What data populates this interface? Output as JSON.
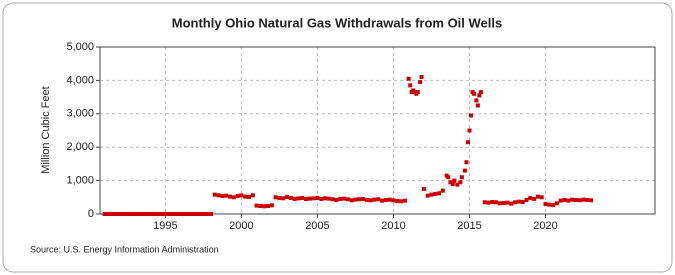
{
  "chart_data": {
    "type": "scatter",
    "title": "Monthly Ohio Natural Gas Withdrawals from Oil Wells",
    "y_label": "Million Cubic Feet",
    "source": "Source: U.S. Energy Information Administration",
    "color": "#cc0000",
    "grid": true,
    "xlim": [
      1990.7,
      2027.2
    ],
    "xticks": [
      1995,
      2000,
      2005,
      2010,
      2015,
      2020
    ],
    "ylim": [
      0,
      5000
    ],
    "yticks": [
      0,
      {
        "value": 1000,
        "label": "1,000"
      },
      {
        "value": 2000,
        "label": "2,000"
      },
      {
        "value": 3000,
        "label": "3,000"
      },
      {
        "value": 4000,
        "label": "4,000"
      },
      {
        "value": 5000,
        "label": "5,000"
      }
    ],
    "x": [
      1991,
      1991.25,
      1991.5,
      1991.75,
      1992,
      1992.25,
      1992.5,
      1992.75,
      1993,
      1993.25,
      1993.5,
      1993.75,
      1994,
      1994.25,
      1994.5,
      1994.75,
      1995,
      1995.25,
      1995.5,
      1995.75,
      1996,
      1996.25,
      1996.5,
      1996.75,
      1997,
      1997.25,
      1997.5,
      1997.75,
      1998,
      1998.25,
      1998.5,
      1998.75,
      1999,
      1999.25,
      1999.5,
      1999.75,
      2000,
      2000.25,
      2000.5,
      2000.75,
      2001,
      2001.25,
      2001.5,
      2001.75,
      2002,
      2002.25,
      2002.5,
      2002.75,
      2003,
      2003.25,
      2003.5,
      2003.75,
      2004,
      2004.25,
      2004.5,
      2004.75,
      2005,
      2005.25,
      2005.5,
      2005.75,
      2006,
      2006.25,
      2006.5,
      2006.75,
      2007,
      2007.25,
      2007.5,
      2007.75,
      2008,
      2008.25,
      2008.5,
      2008.75,
      2009,
      2009.25,
      2009.5,
      2009.75,
      2010,
      2010.25,
      2010.5,
      2010.75,
      2011,
      2011.1,
      2011.2,
      2011.3,
      2011.4,
      2011.5,
      2011.6,
      2011.75,
      2011.85,
      2012,
      2012.25,
      2012.5,
      2012.75,
      2013,
      2013.25,
      2013.5,
      2013.6,
      2013.75,
      2013.9,
      2014,
      2014.2,
      2014.4,
      2014.5,
      2014.7,
      2014.8,
      2014.9,
      2015,
      2015.1,
      2015.2,
      2015.3,
      2015.45,
      2015.55,
      2015.65,
      2015.75,
      2016,
      2016.25,
      2016.5,
      2016.75,
      2017,
      2017.25,
      2017.5,
      2017.75,
      2018,
      2018.25,
      2018.5,
      2018.75,
      2019,
      2019.25,
      2019.5,
      2019.75,
      2020,
      2020.25,
      2020.5,
      2020.75,
      2021,
      2021.25,
      2021.5,
      2021.75,
      2022,
      2022.25,
      2022.5,
      2022.75,
      2023
    ],
    "values": [
      0,
      0,
      0,
      0,
      0,
      0,
      0,
      0,
      0,
      0,
      0,
      0,
      0,
      0,
      0,
      0,
      0,
      0,
      0,
      0,
      0,
      0,
      0,
      0,
      0,
      0,
      0,
      0,
      0,
      580,
      560,
      540,
      550,
      520,
      500,
      540,
      560,
      520,
      510,
      560,
      250,
      240,
      230,
      240,
      260,
      500,
      480,
      470,
      510,
      480,
      450,
      470,
      480,
      450,
      460,
      470,
      480,
      450,
      470,
      460,
      440,
      420,
      450,
      460,
      440,
      410,
      430,
      440,
      450,
      420,
      410,
      430,
      440,
      400,
      420,
      430,
      410,
      390,
      380,
      400,
      4050,
      3850,
      3650,
      3700,
      3650,
      3600,
      3650,
      3950,
      4100,
      750,
      550,
      580,
      600,
      620,
      700,
      1150,
      1100,
      950,
      900,
      1000,
      880,
      950,
      1100,
      1300,
      1550,
      2150,
      2500,
      2950,
      3650,
      3600,
      3400,
      3250,
      3550,
      3650,
      350,
      340,
      360,
      350,
      320,
      330,
      340,
      310,
      350,
      370,
      360,
      420,
      480,
      450,
      520,
      500,
      300,
      280,
      270,
      320,
      400,
      420,
      400,
      430,
      420,
      410,
      430,
      420,
      410
    ]
  }
}
